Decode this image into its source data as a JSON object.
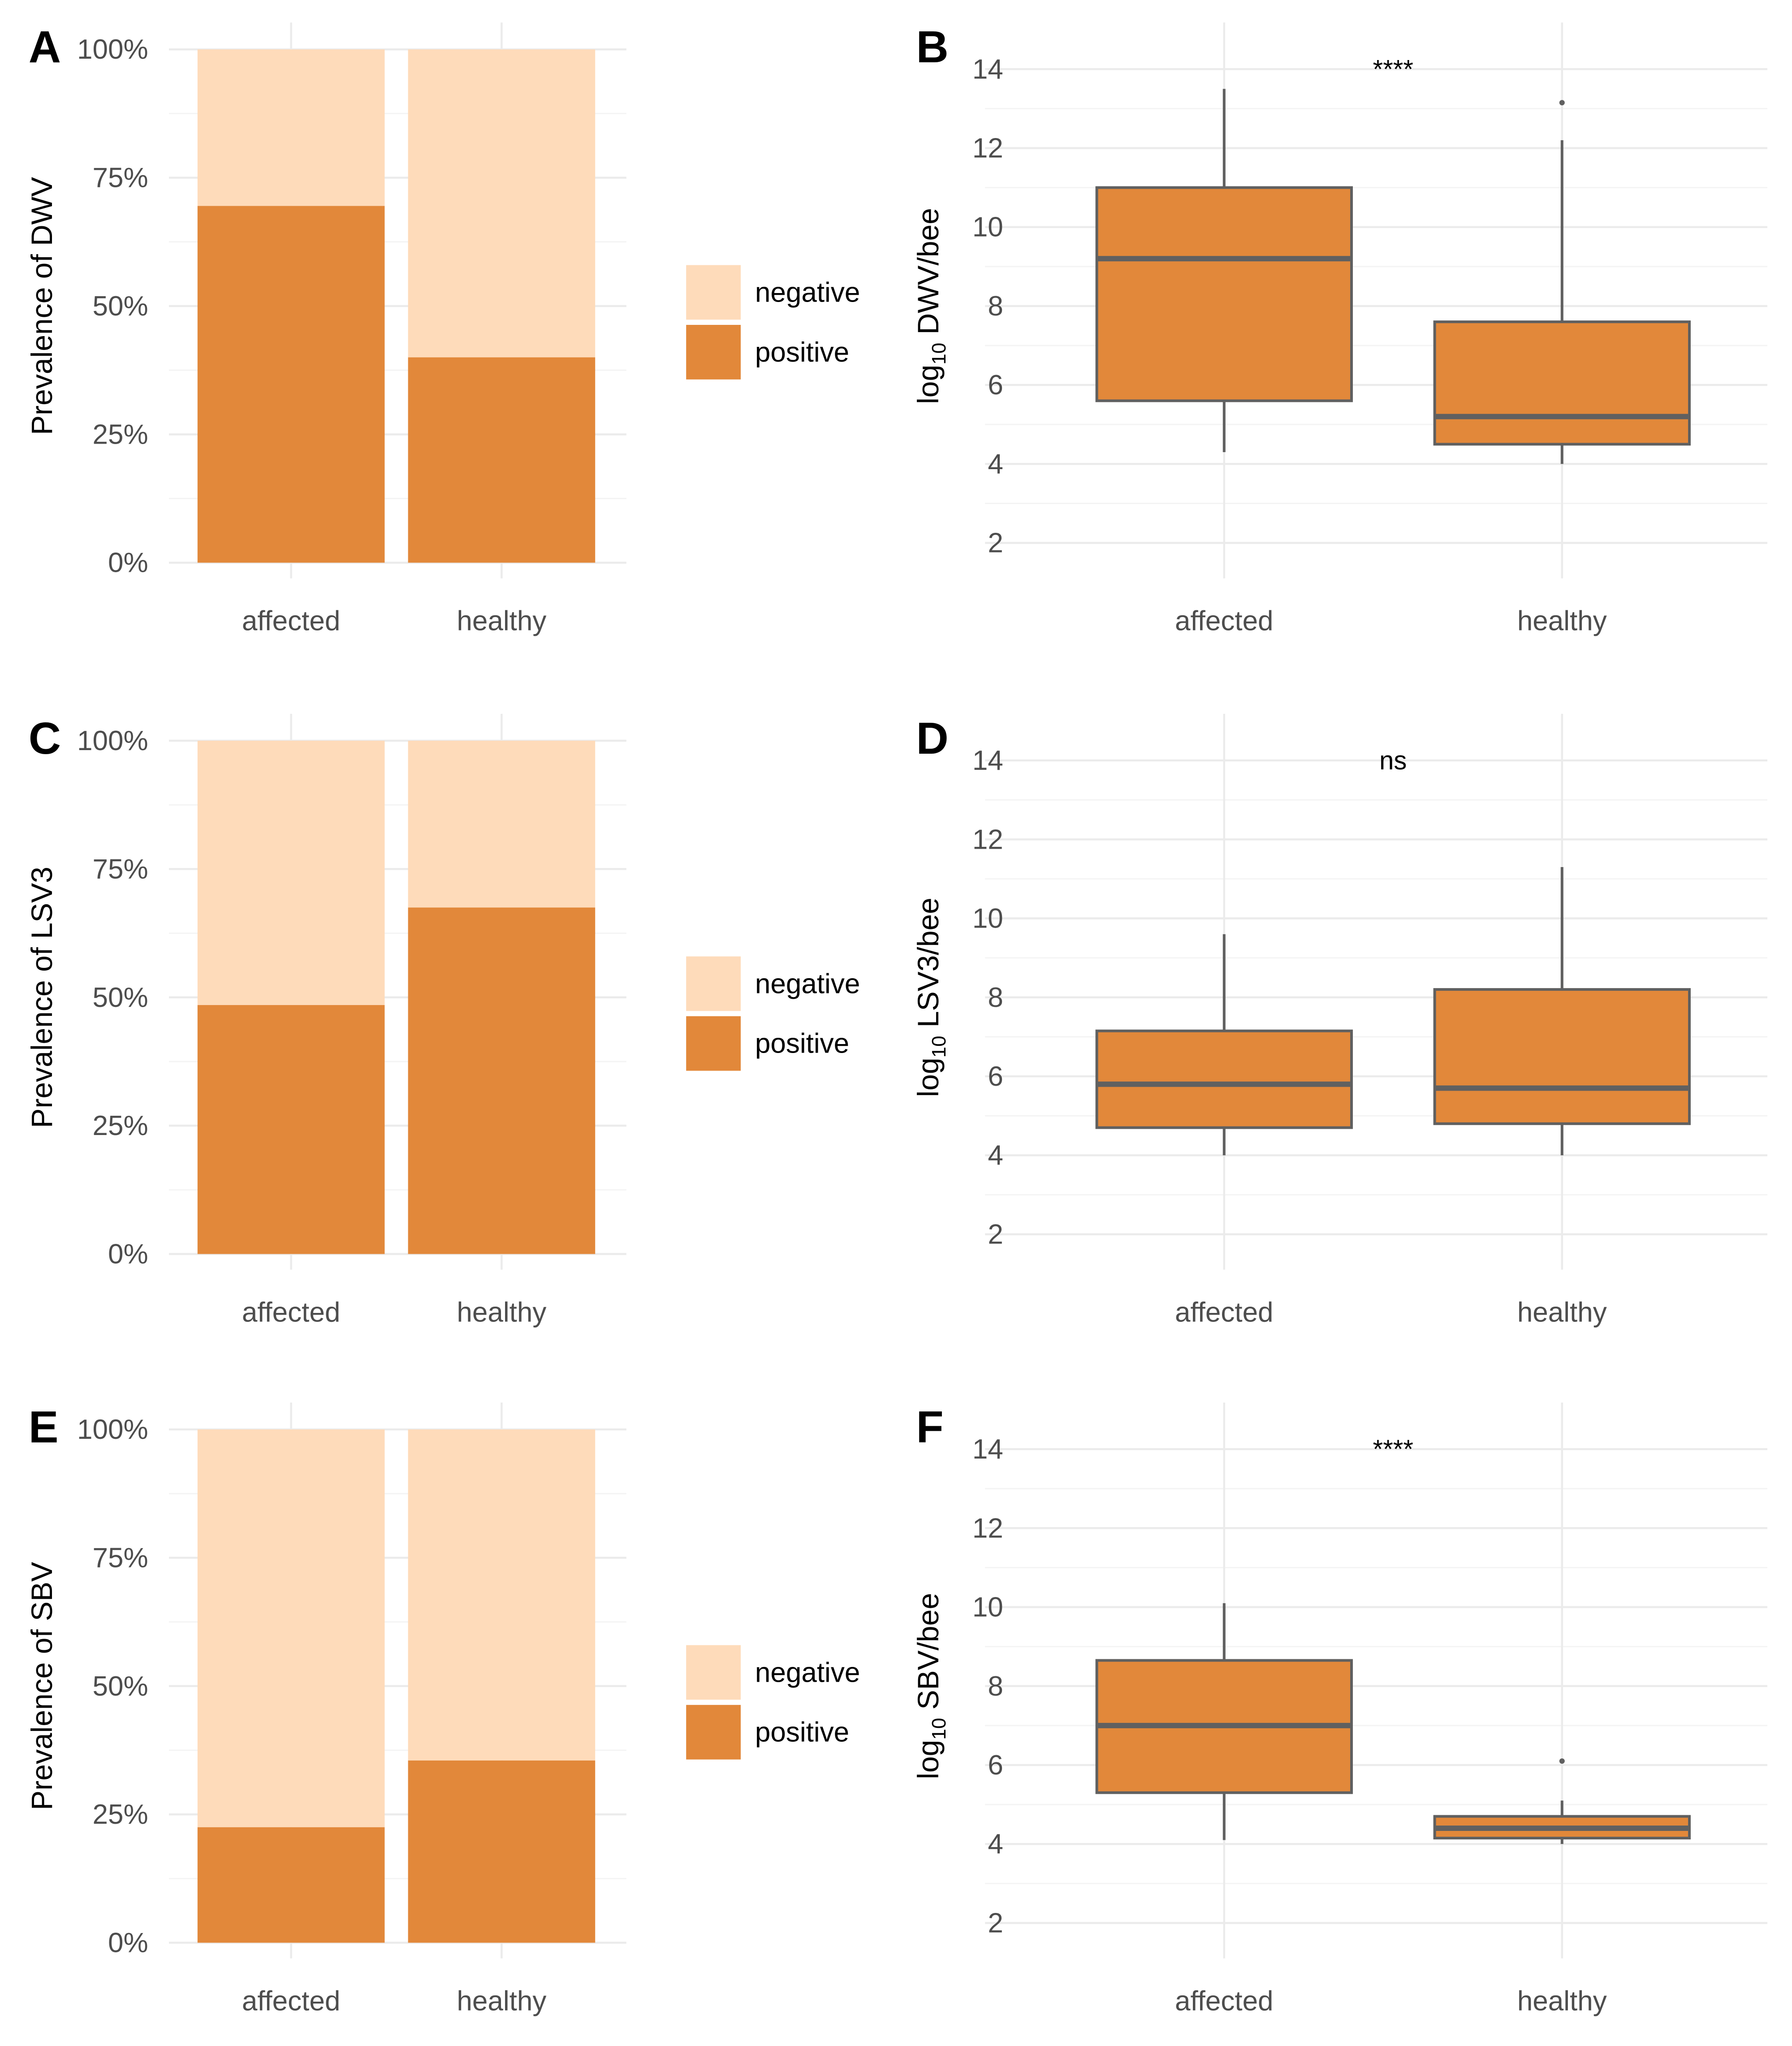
{
  "colors": {
    "positive": "#E2883A",
    "negative": "#FEDBBA",
    "box_line": "#606060",
    "grid_major": "#EBEBEB",
    "grid_minor": "#F4F4F4",
    "tick_text": "#4D4D4D"
  },
  "chart_data": [
    {
      "panel": "A",
      "type": "bar",
      "stacked": true,
      "ylabel": "Prevalence of DWV",
      "xlabel": "",
      "ylim": [
        0,
        100
      ],
      "yticks": [
        "0%",
        "25%",
        "50%",
        "75%",
        "100%"
      ],
      "categories": [
        "affected",
        "healthy"
      ],
      "series": [
        {
          "name": "positive",
          "values": [
            69.5,
            40
          ]
        },
        {
          "name": "negative",
          "values": [
            30.5,
            60
          ]
        }
      ],
      "legend": [
        "negative",
        "positive"
      ],
      "legend_position": "right"
    },
    {
      "panel": "B",
      "type": "box",
      "ylabel_base": "log",
      "ylabel_sub": "10",
      "ylabel_rest": " DWV/bee",
      "ylim": [
        1.5,
        14.5
      ],
      "yticks": [
        "2",
        "4",
        "6",
        "8",
        "10",
        "12",
        "14"
      ],
      "categories": [
        "affected",
        "healthy"
      ],
      "boxes": [
        {
          "whisker_low": 4.3,
          "q1": 5.6,
          "median": 9.2,
          "q3": 11.0,
          "whisker_high": 13.5,
          "outliers": []
        },
        {
          "whisker_low": 4.0,
          "q1": 4.5,
          "median": 5.2,
          "q3": 7.6,
          "whisker_high": 12.2,
          "outliers": [
            13.15
          ]
        }
      ],
      "significance": "****"
    },
    {
      "panel": "C",
      "type": "bar",
      "stacked": true,
      "ylabel": "Prevalence of LSV3",
      "xlabel": "",
      "ylim": [
        0,
        100
      ],
      "yticks": [
        "0%",
        "25%",
        "50%",
        "75%",
        "100%"
      ],
      "categories": [
        "affected",
        "healthy"
      ],
      "series": [
        {
          "name": "positive",
          "values": [
            48.5,
            67.5
          ]
        },
        {
          "name": "negative",
          "values": [
            51.5,
            32.5
          ]
        }
      ],
      "legend": [
        "negative",
        "positive"
      ],
      "legend_position": "right"
    },
    {
      "panel": "D",
      "type": "box",
      "ylabel_base": "log",
      "ylabel_sub": "10",
      "ylabel_rest": " LSV3/bee",
      "ylim": [
        1.5,
        14.5
      ],
      "yticks": [
        "2",
        "4",
        "6",
        "8",
        "10",
        "12",
        "14"
      ],
      "categories": [
        "affected",
        "healthy"
      ],
      "boxes": [
        {
          "whisker_low": 4.0,
          "q1": 4.7,
          "median": 5.8,
          "q3": 7.15,
          "whisker_high": 9.6,
          "outliers": []
        },
        {
          "whisker_low": 4.0,
          "q1": 4.8,
          "median": 5.7,
          "q3": 8.2,
          "whisker_high": 11.3,
          "outliers": []
        }
      ],
      "significance": "ns"
    },
    {
      "panel": "E",
      "type": "bar",
      "stacked": true,
      "ylabel": "Prevalence of SBV",
      "xlabel": "",
      "ylim": [
        0,
        100
      ],
      "yticks": [
        "0%",
        "25%",
        "50%",
        "75%",
        "100%"
      ],
      "categories": [
        "affected",
        "healthy"
      ],
      "series": [
        {
          "name": "positive",
          "values": [
            22.5,
            35.5
          ]
        },
        {
          "name": "negative",
          "values": [
            77.5,
            64.5
          ]
        }
      ],
      "legend": [
        "negative",
        "positive"
      ],
      "legend_position": "right"
    },
    {
      "panel": "F",
      "type": "box",
      "ylabel_base": "log",
      "ylabel_sub": "10",
      "ylabel_rest": " SBV/bee",
      "ylim": [
        1.5,
        14.5
      ],
      "yticks": [
        "2",
        "4",
        "6",
        "8",
        "10",
        "12",
        "14"
      ],
      "categories": [
        "affected",
        "healthy"
      ],
      "boxes": [
        {
          "whisker_low": 4.1,
          "q1": 5.3,
          "median": 7.0,
          "q3": 8.65,
          "whisker_high": 10.1,
          "outliers": []
        },
        {
          "whisker_low": 4.0,
          "q1": 4.15,
          "median": 4.4,
          "q3": 4.7,
          "whisker_high": 5.1,
          "outliers": [
            6.1
          ]
        }
      ],
      "significance": "****"
    }
  ]
}
